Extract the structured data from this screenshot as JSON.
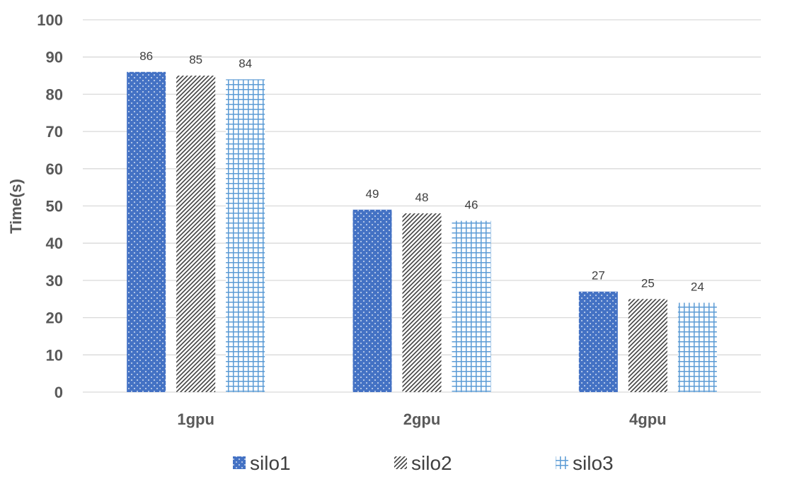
{
  "chart_data": {
    "type": "bar",
    "title": "",
    "xlabel": "",
    "ylabel": "Time(s)",
    "ylim": [
      0,
      100
    ],
    "yticks": [
      0,
      10,
      20,
      30,
      40,
      50,
      60,
      70,
      80,
      90,
      100
    ],
    "grid": true,
    "legend_position": "bottom",
    "categories": [
      "1gpu",
      "2gpu",
      "4gpu"
    ],
    "series": [
      {
        "name": "silo1",
        "values": [
          86,
          49,
          27
        ],
        "labels": [
          "86",
          "49",
          "27"
        ],
        "color": "#4472c4",
        "pattern": "dots"
      },
      {
        "name": "silo2",
        "values": [
          85,
          48,
          25
        ],
        "labels": [
          "85",
          "48",
          "25"
        ],
        "color": "#404040",
        "pattern": "diagonal-hatch"
      },
      {
        "name": "silo3",
        "values": [
          84,
          46,
          24
        ],
        "labels": [
          "84",
          "46",
          "24"
        ],
        "color": "#5b9bd5",
        "pattern": "grid"
      }
    ]
  }
}
